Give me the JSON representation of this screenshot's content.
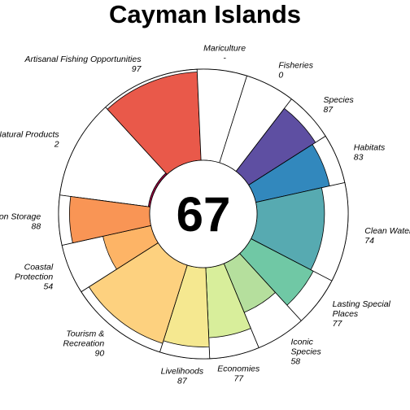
{
  "chart_data": {
    "type": "flower",
    "title": "Cayman Islands",
    "overall_score": "67",
    "ylim": [
      0,
      100
    ],
    "petals": [
      {
        "name": "Natural Products",
        "value": 2,
        "value_label": "2",
        "weight": 1,
        "color": "#9E0142"
      },
      {
        "name": "Artisanal Fishing Opportunities",
        "value": 97,
        "value_label": "97",
        "weight": 1,
        "color": "#E9594A"
      },
      {
        "name": "Mariculture",
        "value": null,
        "value_label": "-",
        "weight": 0.5,
        "color": "#F47E4B"
      },
      {
        "name": "Fisheries",
        "value": 0,
        "value_label": "0",
        "weight": 0.5,
        "color": "#F47E4B"
      },
      {
        "name": "Species",
        "value": 87,
        "value_label": "87",
        "weight": 0.5,
        "color": "#5E4FA2"
      },
      {
        "name": "Habitats",
        "value": 83,
        "value_label": "83",
        "weight": 0.5,
        "color": "#3288BD"
      },
      {
        "name": "Clean Waters",
        "value": 74,
        "value_label": "74",
        "weight": 1,
        "color": "#57AAB1"
      },
      {
        "name": "Lasting Special Places",
        "value": 77,
        "value_label": "77",
        "weight": 0.5,
        "color": "#70C8A5"
      },
      {
        "name": "Iconic Species",
        "value": 58,
        "value_label": "58",
        "weight": 0.5,
        "color": "#B5DF9D"
      },
      {
        "name": "Economies",
        "value": 77,
        "value_label": "77",
        "weight": 0.5,
        "color": "#D8EE9B"
      },
      {
        "name": "Livelihoods",
        "value": 87,
        "value_label": "87",
        "weight": 0.5,
        "color": "#F5E890"
      },
      {
        "name": "Tourism & Recreation",
        "value": 90,
        "value_label": "90",
        "weight": 1,
        "color": "#FDD17F"
      },
      {
        "name": "Coastal Protection",
        "value": 54,
        "value_label": "54",
        "weight": 0.5,
        "color": "#FDB466"
      },
      {
        "name": "Carbon Storage",
        "value": 88,
        "value_label": "88",
        "weight": 0.5,
        "color": "#F99555"
      }
    ]
  }
}
